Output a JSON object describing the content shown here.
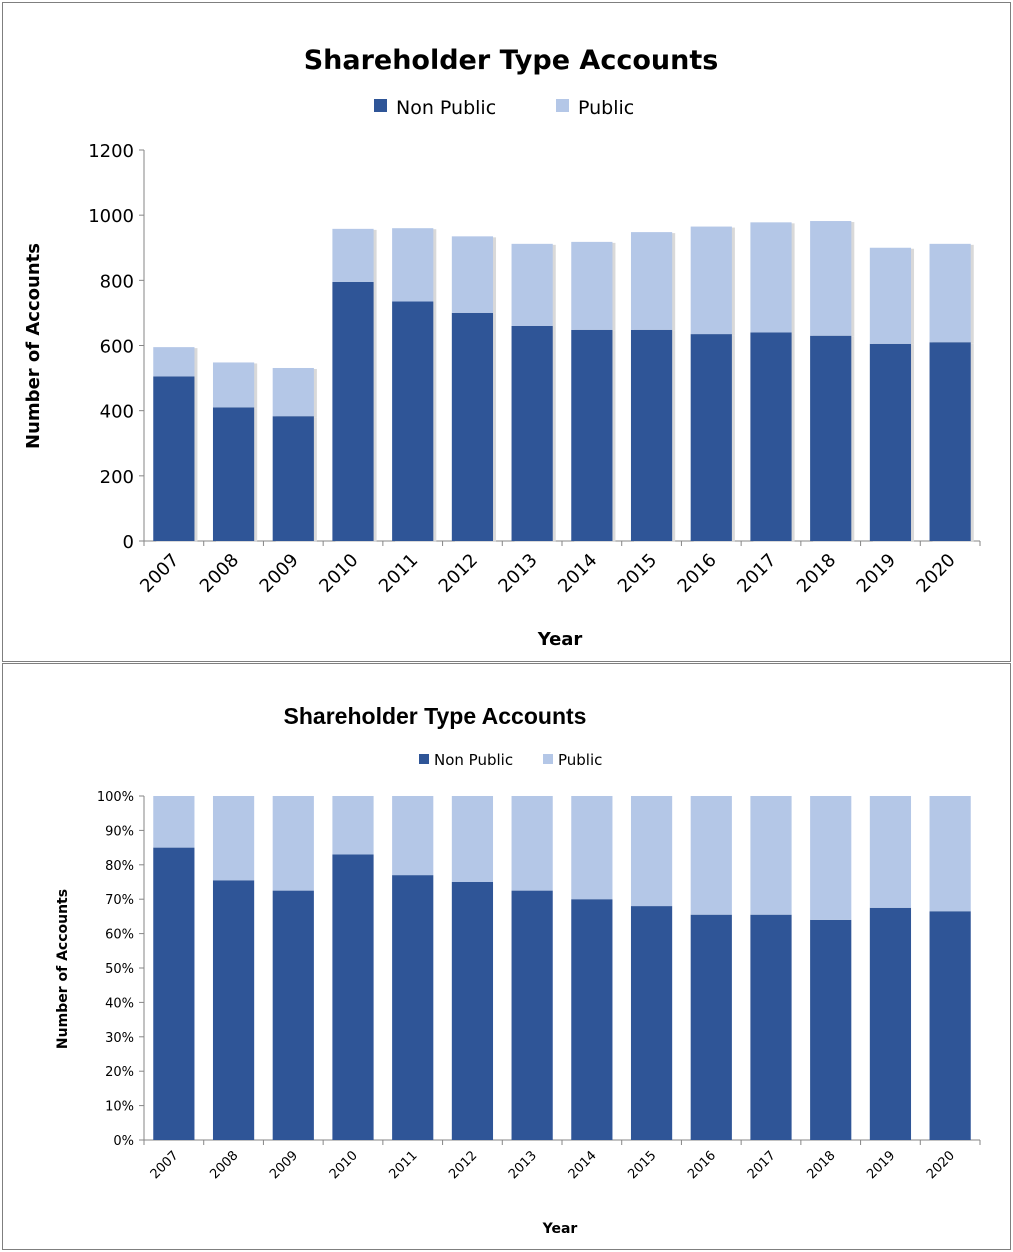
{
  "chart_data": [
    {
      "type": "bar",
      "stacked": true,
      "title": "Shareholder Type Accounts",
      "xlabel": "Year",
      "ylabel": "Number of Accounts",
      "categories": [
        "2007",
        "2008",
        "2009",
        "2010",
        "2011",
        "2012",
        "2013",
        "2014",
        "2015",
        "2016",
        "2017",
        "2018",
        "2019",
        "2020"
      ],
      "series": [
        {
          "name": "Non Public",
          "color": "#2f5597",
          "values": [
            505,
            410,
            383,
            795,
            735,
            700,
            660,
            648,
            648,
            635,
            640,
            630,
            605,
            610
          ]
        },
        {
          "name": "Public",
          "color": "#b4c7e7",
          "values": [
            90,
            138,
            148,
            163,
            225,
            235,
            252,
            270,
            300,
            330,
            338,
            352,
            295,
            302
          ]
        }
      ],
      "ylim": [
        0,
        1200
      ],
      "yticks": [
        "0",
        "200",
        "400",
        "600",
        "800",
        "1000",
        "1200"
      ],
      "legend": "top",
      "grid": false
    },
    {
      "type": "bar",
      "stacked": true,
      "percent": true,
      "title": "Shareholder Type Accounts",
      "xlabel": "Year",
      "ylabel": "Number of Accounts",
      "categories": [
        "2007",
        "2008",
        "2009",
        "2010",
        "2011",
        "2012",
        "2013",
        "2014",
        "2015",
        "2016",
        "2017",
        "2018",
        "2019",
        "2020"
      ],
      "series": [
        {
          "name": "Non Public",
          "color": "#2f5597",
          "values": [
            85,
            75.5,
            72.5,
            83,
            77,
            75,
            72.5,
            70,
            68,
            65.5,
            65.5,
            64,
            67.5,
            66.5
          ]
        },
        {
          "name": "Public",
          "color": "#b4c7e7",
          "values": [
            15,
            24.5,
            27.5,
            17,
            23,
            25,
            27.5,
            30,
            32,
            34.5,
            34.5,
            36,
            32.5,
            33.5
          ]
        }
      ],
      "ylim": [
        0,
        100
      ],
      "yticks": [
        "0%",
        "10%",
        "20%",
        "30%",
        "40%",
        "50%",
        "60%",
        "70%",
        "80%",
        "90%",
        "100%"
      ],
      "legend": "top",
      "grid": false
    }
  ]
}
